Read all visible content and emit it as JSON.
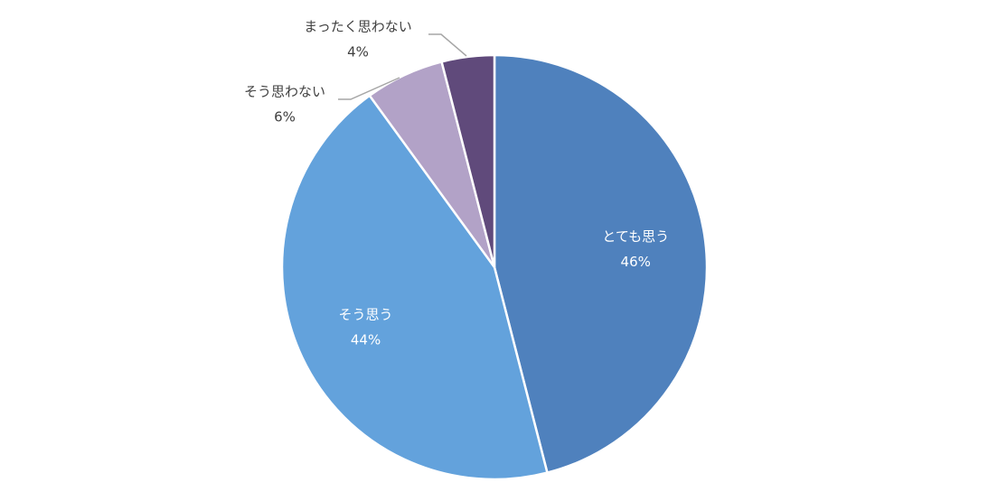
{
  "chart_data": {
    "type": "pie",
    "categories": [
      "とても思う",
      "そう思う",
      "そう思わない",
      "まったく思わない"
    ],
    "values": [
      46,
      44,
      6,
      4
    ],
    "value_labels": [
      "46%",
      "44%",
      "6%",
      "4%"
    ],
    "colors": [
      "#4f81bd",
      "#63a2dc",
      "#b2a2c7",
      "#604a7b"
    ]
  }
}
